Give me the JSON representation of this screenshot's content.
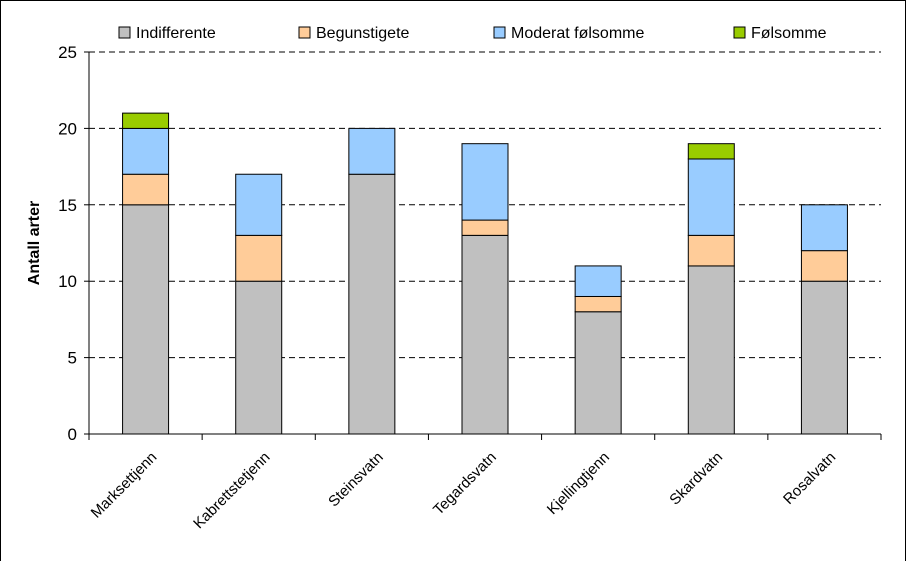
{
  "chart_data": {
    "type": "bar",
    "stacked": true,
    "ylabel": "Antall arter",
    "ylim": [
      0,
      25
    ],
    "yticks": [
      0,
      5,
      10,
      15,
      20,
      25
    ],
    "grid": "horizontal-dashed",
    "legend_position": "top",
    "categories": [
      "Marksettjenn",
      "Kabrettstetjenn",
      "Steinsvatn",
      "Tegardsvatn",
      "Kjellingtjenn",
      "Skardvatn",
      "Rosalvatn"
    ],
    "series": [
      {
        "name": "Indifferente",
        "color": "#c0c0c0",
        "values": [
          15,
          10,
          17,
          13,
          8,
          11,
          10
        ]
      },
      {
        "name": "Begunstigete",
        "color": "#ffcc99",
        "values": [
          2,
          3,
          0,
          1,
          1,
          2,
          2
        ]
      },
      {
        "name": "Moderat følsomme",
        "color": "#99ccff",
        "values": [
          3,
          4,
          3,
          5,
          2,
          5,
          3
        ]
      },
      {
        "name": "Følsomme",
        "color": "#99cc00",
        "values": [
          1,
          0,
          0,
          0,
          0,
          1,
          0
        ]
      }
    ]
  }
}
